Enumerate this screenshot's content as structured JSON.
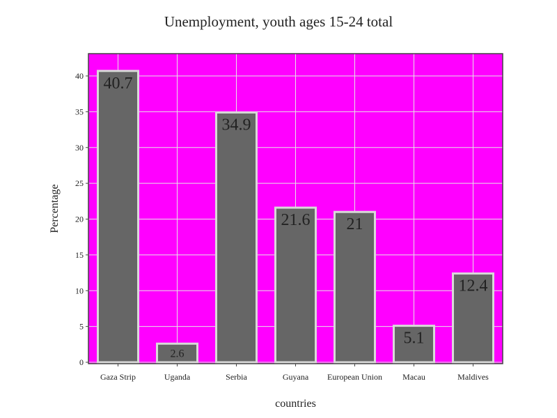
{
  "chart_data": {
    "type": "bar",
    "title": "Unemployment, youth ages 15-24 total",
    "xlabel": "countries",
    "ylabel": "Percentage",
    "categories": [
      "Gaza Strip",
      "Uganda",
      "Serbia",
      "Guyana",
      "European Union",
      "Macau",
      "Maldives"
    ],
    "values": [
      40.7,
      2.6,
      34.9,
      21.6,
      21,
      5.1,
      12.4
    ],
    "data_labels": [
      "40.7",
      "2.6",
      "34.9",
      "21.6",
      "21",
      "5.1",
      "12.4"
    ],
    "ylim": [
      0,
      42.2
    ],
    "yticks": [
      0,
      5,
      10,
      15,
      20,
      25,
      30,
      35,
      40
    ],
    "grid": true,
    "legend": "none",
    "colors": {
      "plot_background": "#ff00ff",
      "bar_fill": "#666666",
      "bar_outline": "#d9d9d9",
      "gridline": "#e6e6e6",
      "axis": "#444444"
    }
  }
}
